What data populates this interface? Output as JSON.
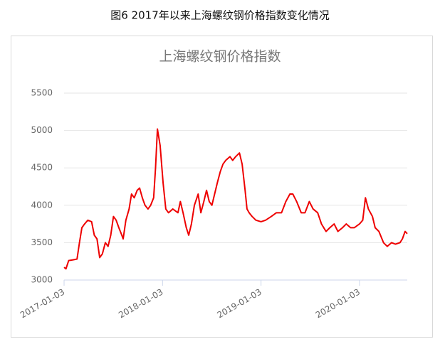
{
  "chart_data": {
    "type": "line",
    "caption": "图6  2017年以来上海螺纹钢价格指数变化情况",
    "title": "上海螺纹钢价格指数",
    "color": "#ee0000",
    "grid": true,
    "xlim": [
      "2017-01-03",
      "2020-06-28"
    ],
    "xticks": [
      "2017-01-03",
      "2018-01-03",
      "2019-01-03",
      "2020-01-03"
    ],
    "ylim": [
      3000,
      5500
    ],
    "yticks": [
      3000,
      3500,
      4000,
      4500,
      5000,
      5500
    ],
    "x": [
      "2017-01-03",
      "2017-01-10",
      "2017-01-20",
      "2017-02-05",
      "2017-02-20",
      "2017-03-01",
      "2017-03-10",
      "2017-03-20",
      "2017-04-01",
      "2017-04-15",
      "2017-04-25",
      "2017-05-05",
      "2017-05-15",
      "2017-05-25",
      "2017-06-05",
      "2017-06-15",
      "2017-06-25",
      "2017-07-05",
      "2017-07-15",
      "2017-07-25",
      "2017-08-05",
      "2017-08-10",
      "2017-08-20",
      "2017-09-01",
      "2017-09-10",
      "2017-09-20",
      "2017-10-01",
      "2017-10-10",
      "2017-10-20",
      "2017-10-30",
      "2017-11-10",
      "2017-11-20",
      "2017-12-01",
      "2017-12-08",
      "2017-12-15",
      "2017-12-25",
      "2018-01-05",
      "2018-01-15",
      "2018-01-25",
      "2018-02-10",
      "2018-03-01",
      "2018-03-10",
      "2018-03-20",
      "2018-04-01",
      "2018-04-10",
      "2018-04-20",
      "2018-05-01",
      "2018-05-15",
      "2018-05-25",
      "2018-06-05",
      "2018-06-15",
      "2018-06-25",
      "2018-07-05",
      "2018-07-15",
      "2018-07-25",
      "2018-08-05",
      "2018-08-15",
      "2018-08-25",
      "2018-09-10",
      "2018-09-20",
      "2018-10-01",
      "2018-10-15",
      "2018-10-25",
      "2018-11-05",
      "2018-11-12",
      "2018-11-20",
      "2018-12-01",
      "2018-12-15",
      "2019-01-03",
      "2019-01-20",
      "2019-02-10",
      "2019-03-01",
      "2019-03-20",
      "2019-04-05",
      "2019-04-20",
      "2019-05-01",
      "2019-05-15",
      "2019-06-01",
      "2019-06-15",
      "2019-07-01",
      "2019-07-15",
      "2019-08-01",
      "2019-08-15",
      "2019-09-01",
      "2019-09-15",
      "2019-10-01",
      "2019-10-15",
      "2019-11-01",
      "2019-11-15",
      "2019-12-01",
      "2019-12-15",
      "2020-01-03",
      "2020-01-15",
      "2020-01-25",
      "2020-02-05",
      "2020-02-20",
      "2020-03-01",
      "2020-03-15",
      "2020-04-01",
      "2020-04-15",
      "2020-05-01",
      "2020-05-15",
      "2020-06-01",
      "2020-06-10",
      "2020-06-20",
      "2020-06-28"
    ],
    "values": [
      3170,
      3150,
      3260,
      3270,
      3280,
      3500,
      3700,
      3750,
      3800,
      3780,
      3600,
      3550,
      3300,
      3350,
      3500,
      3450,
      3600,
      3850,
      3800,
      3700,
      3600,
      3550,
      3800,
      3950,
      4150,
      4100,
      4200,
      4230,
      4100,
      4000,
      3950,
      4000,
      4100,
      4500,
      5020,
      4800,
      4300,
      3950,
      3900,
      3950,
      3900,
      4050,
      3900,
      3700,
      3600,
      3750,
      4000,
      4150,
      3900,
      4050,
      4200,
      4050,
      4000,
      4150,
      4300,
      4450,
      4550,
      4600,
      4650,
      4600,
      4650,
      4700,
      4550,
      4200,
      3950,
      3900,
      3850,
      3800,
      3780,
      3800,
      3850,
      3900,
      3900,
      4050,
      4150,
      4150,
      4050,
      3900,
      3900,
      4050,
      3950,
      3900,
      3750,
      3650,
      3700,
      3750,
      3650,
      3700,
      3750,
      3700,
      3700,
      3750,
      3800,
      4100,
      3950,
      3850,
      3700,
      3650,
      3500,
      3450,
      3500,
      3480,
      3500,
      3550,
      3650,
      3620
    ]
  }
}
